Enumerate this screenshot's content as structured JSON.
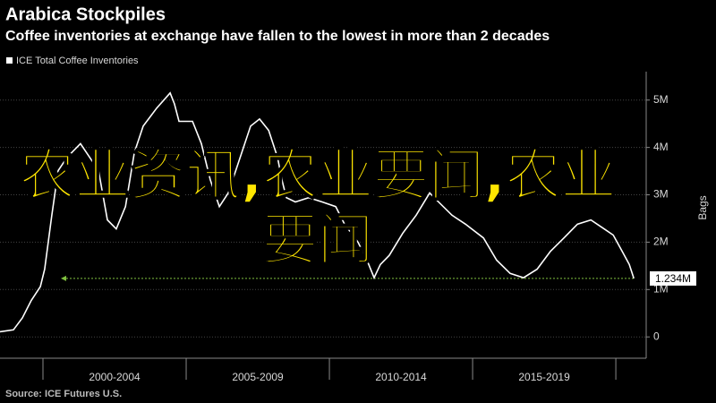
{
  "chart_data": {
    "type": "line",
    "title": "Arabica Stockpiles",
    "subtitle": "Coffee inventories at exchange have fallen to the lowest in more than 2 decades",
    "y_axis_label": "Bags",
    "source": "Source: ICE Futures U.S.",
    "overlay_text": "农业资讯,农业要闻,农业要闻",
    "x_labels": [
      "2000-2004",
      "2005-2009",
      "2010-2014",
      "2015-2019"
    ],
    "xlim": [
      1998.5,
      2021.06
    ],
    "xticks": [
      2000,
      2005,
      2010,
      2015,
      2020
    ],
    "ylim": [
      -450000,
      5600000
    ],
    "yticks": [
      {
        "value": 0,
        "label": "0"
      },
      {
        "value": 1000000,
        "label": "1M"
      },
      {
        "value": 2000000,
        "label": "2M"
      },
      {
        "value": 3000000,
        "label": "3M"
      },
      {
        "value": 4000000,
        "label": "4M"
      },
      {
        "value": 5000000,
        "label": "5M"
      }
    ],
    "grid": true,
    "series": [
      {
        "name": "ICE Total Coffee Inventories",
        "color": "#ffffff",
        "x": [
          1998.5,
          1998.97,
          1999.28,
          1999.59,
          1999.91,
          2000.06,
          2000.31,
          2000.53,
          2000.84,
          2001.31,
          2001.63,
          2001.94,
          2002.25,
          2002.56,
          2002.88,
          2003.19,
          2003.5,
          2003.97,
          2004.44,
          2004.59,
          2004.75,
          2005.22,
          2005.53,
          2005.84,
          2006.16,
          2006.47,
          2006.78,
          2007.25,
          2007.56,
          2007.88,
          2008.19,
          2008.34,
          2008.5,
          2008.81,
          2009.28,
          2009.75,
          2010.22,
          2010.53,
          2011,
          2011.31,
          2011.56,
          2011.78,
          2012.09,
          2012.56,
          2013.03,
          2013.5,
          2013.81,
          2014.28,
          2014.75,
          2015.38,
          2015.84,
          2016.31,
          2016.78,
          2017.25,
          2017.72,
          2018.19,
          2018.66,
          2019.13,
          2019.59,
          2019.91,
          2020.22,
          2020.47,
          2020.63
        ],
        "values": [
          110000,
          150000,
          400000,
          770000,
          1060000,
          1430000,
          2570000,
          3510000,
          3790000,
          4080000,
          3790000,
          3510000,
          2470000,
          2280000,
          2750000,
          3890000,
          4450000,
          4830000,
          5150000,
          4920000,
          4550000,
          4550000,
          4080000,
          3320000,
          2750000,
          3040000,
          3600000,
          4450000,
          4600000,
          4360000,
          3790000,
          3320000,
          2940000,
          2850000,
          2940000,
          2850000,
          2750000,
          2380000,
          2000000,
          1620000,
          1250000,
          1530000,
          1720000,
          2190000,
          2570000,
          3040000,
          2850000,
          2570000,
          2380000,
          2090000,
          1620000,
          1340000,
          1250000,
          1430000,
          1810000,
          2090000,
          2380000,
          2470000,
          2280000,
          2150000,
          1810000,
          1530000,
          1234000
        ],
        "last_value_label": "1.234M",
        "marker_color": "#7fbf3f"
      }
    ]
  }
}
